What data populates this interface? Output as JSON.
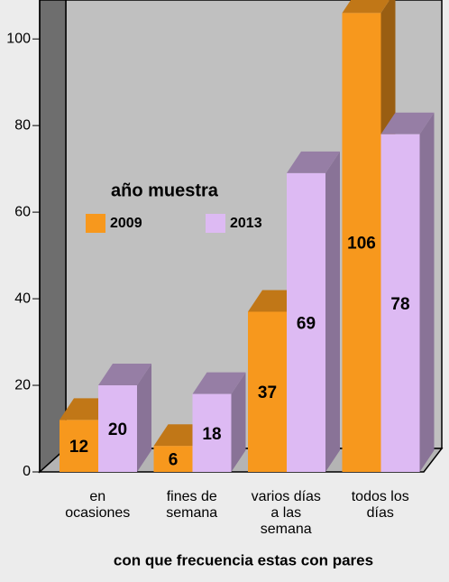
{
  "chart_data": {
    "type": "bar3d",
    "xlabel": "con que frecuencia estas con pares",
    "legend_title": "año muestra",
    "categories": [
      "en\nocasiones",
      "fines de\nsemana",
      "varios días\na las\nsemana",
      "todos los\ndías"
    ],
    "series": [
      {
        "name": "2009",
        "color": "#f7981d",
        "values": [
          12,
          6,
          37,
          106
        ]
      },
      {
        "name": "2013",
        "color": "#ddbaf3",
        "values": [
          20,
          18,
          69,
          78
        ]
      }
    ],
    "ylim": [
      0,
      109
    ],
    "yticks": [
      0,
      20,
      40,
      60,
      80,
      100
    ]
  }
}
